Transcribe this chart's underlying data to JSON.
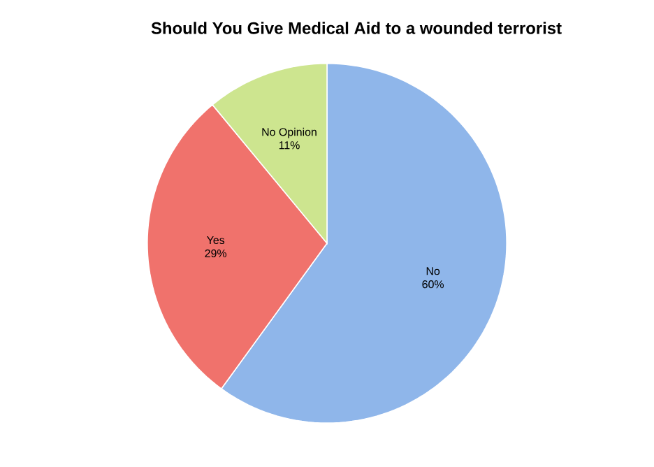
{
  "chart_data": {
    "type": "pie",
    "title": "Should You Give Medical Aid to a wounded terrorist",
    "categories": [
      "No",
      "Yes",
      "No Opinion"
    ],
    "values": [
      60,
      29,
      11
    ],
    "value_labels": [
      "60%",
      "29%",
      "11%"
    ],
    "colors": [
      "#8fb6ea",
      "#f0726c",
      "#cde58f"
    ]
  }
}
